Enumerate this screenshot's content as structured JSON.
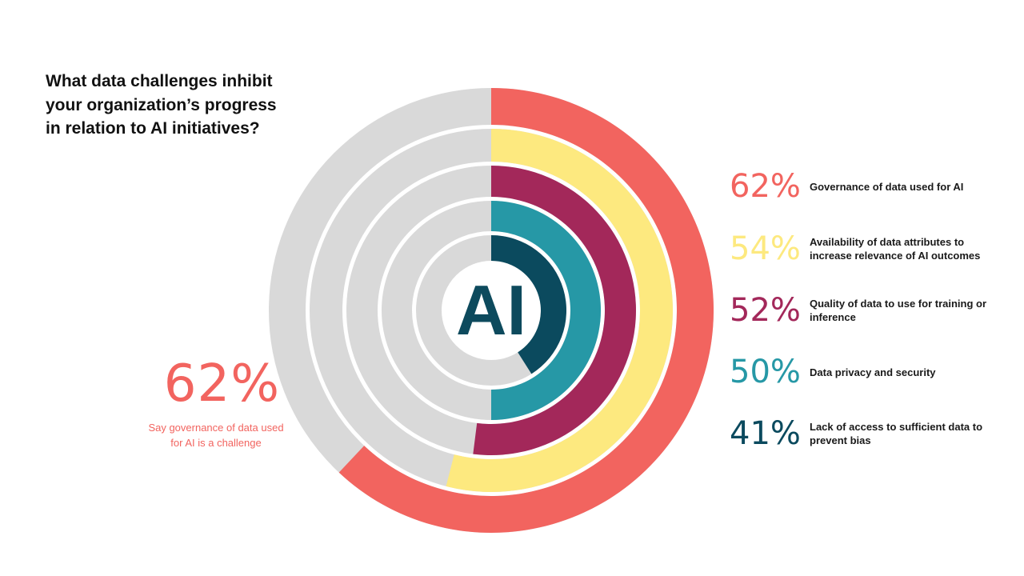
{
  "title": "What data challenges inhibit your organization’s progress in relation to AI initiatives?",
  "center_text": "AI",
  "highlight": {
    "value": "62%",
    "caption": "Say governance of data used for AI is a  challenge",
    "color": "#f2645f"
  },
  "colors": {
    "track": "#d9d9d9",
    "center_text": "#0d4a5d"
  },
  "legend": [
    {
      "percent": "62%",
      "label": "Governance of data used for AI",
      "color": "#f2645f"
    },
    {
      "percent": "54%",
      "label": "Availability of data attributes to increase relevance of AI outcomes",
      "color": "#fde97f"
    },
    {
      "percent": "52%",
      "label": "Quality of data to use for training or inference",
      "color": "#a3285a"
    },
    {
      "percent": "50%",
      "label": "Data privacy and security",
      "color": "#2698a6"
    },
    {
      "percent": "41%",
      "label": "Lack of access to sufficient data to prevent bias",
      "color": "#0b4a5e"
    }
  ],
  "chart_data": {
    "type": "radial-bar",
    "title": "What data challenges inhibit your organization’s progress in relation to AI initiatives?",
    "unit": "%",
    "max": 100,
    "series": [
      {
        "name": "Governance of data used for AI",
        "value": 62,
        "color": "#f2645f"
      },
      {
        "name": "Availability of data attributes to increase relevance of AI outcomes",
        "value": 54,
        "color": "#fde97f"
      },
      {
        "name": "Quality of data to use for training or inference",
        "value": 52,
        "color": "#a3285a"
      },
      {
        "name": "Data privacy and security",
        "value": 50,
        "color": "#2698a6"
      },
      {
        "name": "Lack of access to sufficient data to prevent bias",
        "value": 41,
        "color": "#0b4a5e"
      }
    ]
  }
}
